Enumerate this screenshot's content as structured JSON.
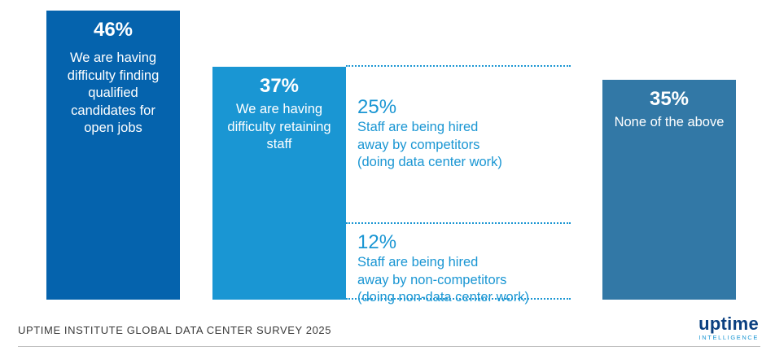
{
  "chart_data": {
    "type": "bar",
    "title": "",
    "xlabel": "",
    "ylabel": "",
    "ylim": [
      0,
      50
    ],
    "bars": [
      {
        "value": 46,
        "pct_label": "46%",
        "label": "We are having difficulty finding qualified candidates for open jobs",
        "color": "#0563ad"
      },
      {
        "value": 37,
        "pct_label": "37%",
        "label": "We are having difficulty retaining staff",
        "color": "#1a96d3",
        "breakdown": [
          {
            "value": 25,
            "pct_label": "25%",
            "label": "Staff are being hired\naway by competitors\n(doing data center work)"
          },
          {
            "value": 12,
            "pct_label": "12%",
            "label": "Staff are being hired\naway by non-competitors\n(doing non-data center work)"
          }
        ]
      },
      {
        "value": 35,
        "pct_label": "35%",
        "label": "None of the above",
        "color": "#3278a6"
      }
    ]
  },
  "footer": {
    "source": "UPTIME INSTITUTE GLOBAL DATA CENTER SURVEY 2025",
    "logo_word": "uptime",
    "logo_tag": "INTELLIGENCE"
  }
}
